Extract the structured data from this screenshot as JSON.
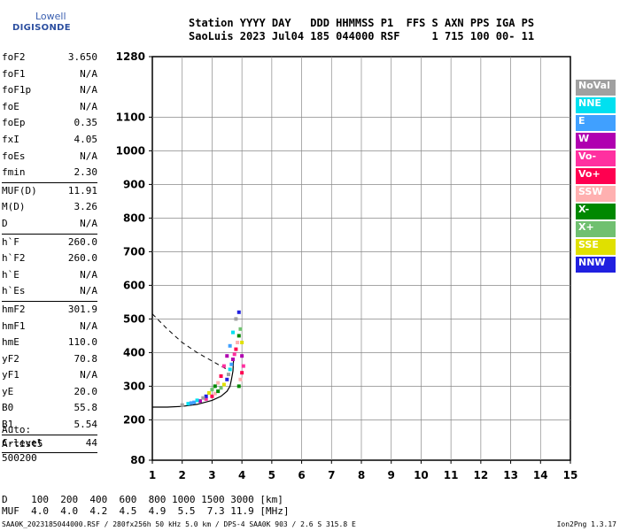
{
  "logo": {
    "line1": "Lowell",
    "line2": "DIGISONDE"
  },
  "header": {
    "line1": "Station YYYY DAY   DDD HHMMSS P1  FFS S AXN PPS IGA PS",
    "line2": "SaoLuis 2023 Jul04 185 044000 RSF     1 715 100 00- 11"
  },
  "params": [
    {
      "k": "foF2",
      "v": "3.650"
    },
    {
      "k": "foF1",
      "v": "N/A"
    },
    {
      "k": "foF1p",
      "v": "N/A"
    },
    {
      "k": "foE",
      "v": "N/A"
    },
    {
      "k": "foEp",
      "v": "0.35"
    },
    {
      "k": "fxI",
      "v": "4.05"
    },
    {
      "k": "foEs",
      "v": "N/A"
    },
    {
      "k": "fmin",
      "v": "2.30",
      "sep": true
    },
    {
      "k": "MUF(D)",
      "v": "11.91"
    },
    {
      "k": "M(D)",
      "v": "3.26"
    },
    {
      "k": "D",
      "v": "N/A",
      "sep": true
    },
    {
      "k": "h`F",
      "v": "260.0"
    },
    {
      "k": "h`F2",
      "v": "260.0"
    },
    {
      "k": "h`E",
      "v": "N/A"
    },
    {
      "k": "h`Es",
      "v": "N/A",
      "sep": true
    },
    {
      "k": "hmF2",
      "v": "301.9"
    },
    {
      "k": "hmF1",
      "v": "N/A"
    },
    {
      "k": "hmE",
      "v": "110.0"
    },
    {
      "k": "yF2",
      "v": "70.8"
    },
    {
      "k": "yF1",
      "v": "N/A"
    },
    {
      "k": "yE",
      "v": "20.0"
    },
    {
      "k": "B0",
      "v": "55.8"
    },
    {
      "k": "B1",
      "v": "5.54",
      "sep": true
    },
    {
      "k": "C-level",
      "v": "44",
      "sep": true
    }
  ],
  "auto": {
    "line1": "Auto:",
    "line2": "Artist5",
    "line3": "500200"
  },
  "dmuf": {
    "d_line": "D    100  200  400  600  800 1000 1500 3000 [km]",
    "muf_line": "MUF  4.0  4.0  4.2  4.5  4.9  5.5  7.3 11.9 [MHz]"
  },
  "footer": {
    "left": "SAA0K_2023185044000.RSF / 280fx256h 50 kHz 5.0 km / DPS-4 SAA0K 903 / 2.6 S 315.8 E",
    "right": "Ion2Png 1.3.17"
  },
  "legend": [
    {
      "label": "NoVal",
      "color": "#a0a0a0"
    },
    {
      "label": "NNE",
      "color": "#00e0f0"
    },
    {
      "label": "E",
      "color": "#40a0ff"
    },
    {
      "label": "W",
      "color": "#b000b0"
    },
    {
      "label": "Vo-",
      "color": "#ff30a0"
    },
    {
      "label": "Vo+",
      "color": "#ff0050"
    },
    {
      "label": "SSW",
      "color": "#ffb0b0"
    },
    {
      "label": "X-",
      "color": "#008800"
    },
    {
      "label": "X+",
      "color": "#70c070"
    },
    {
      "label": "SSE",
      "color": "#e0e000"
    },
    {
      "label": "NNW",
      "color": "#2020e0"
    }
  ],
  "chart_data": {
    "type": "scatter",
    "xlim": [
      1,
      15
    ],
    "ylim": [
      80,
      1280
    ],
    "x_ticks": [
      "1",
      "2",
      "3",
      "4",
      "5",
      "6",
      "7",
      "8",
      "9",
      "10",
      "11",
      "12",
      "13",
      "14",
      "15"
    ],
    "y_ticks": [
      "80",
      "200",
      "300",
      "400",
      "500",
      "600",
      "700",
      "800",
      "900",
      "1000",
      "1100",
      "1280"
    ],
    "grid": true,
    "trace_points": [
      [
        2.0,
        244
      ],
      [
        2.2,
        248
      ],
      [
        2.4,
        252
      ],
      [
        2.6,
        256
      ],
      [
        2.8,
        262
      ],
      [
        3.0,
        270
      ],
      [
        3.1,
        278
      ],
      [
        3.2,
        285
      ],
      [
        3.3,
        295
      ],
      [
        3.4,
        305
      ],
      [
        3.5,
        320
      ],
      [
        3.55,
        335
      ],
      [
        3.6,
        350
      ],
      [
        3.65,
        365
      ],
      [
        3.7,
        380
      ],
      [
        3.75,
        395
      ],
      [
        3.8,
        410
      ],
      [
        3.85,
        430
      ],
      [
        3.9,
        450
      ],
      [
        3.95,
        470
      ],
      [
        4.0,
        430
      ],
      [
        3.9,
        520
      ],
      [
        3.8,
        500
      ],
      [
        3.7,
        460
      ],
      [
        3.6,
        420
      ],
      [
        3.5,
        390
      ],
      [
        3.4,
        360
      ],
      [
        3.3,
        330
      ],
      [
        3.2,
        310
      ],
      [
        3.1,
        300
      ],
      [
        3.0,
        290
      ],
      [
        2.9,
        280
      ],
      [
        2.8,
        270
      ],
      [
        2.7,
        265
      ],
      [
        2.5,
        258
      ],
      [
        2.3,
        250
      ],
      [
        4.0,
        390
      ],
      [
        4.05,
        360
      ],
      [
        4.0,
        340
      ],
      [
        3.95,
        320
      ],
      [
        3.9,
        300
      ]
    ],
    "profile_curve": [
      [
        1.0,
        238
      ],
      [
        1.5,
        238
      ],
      [
        2.0,
        240
      ],
      [
        2.5,
        246
      ],
      [
        3.0,
        258
      ],
      [
        3.3,
        270
      ],
      [
        3.5,
        285
      ],
      [
        3.6,
        300
      ],
      [
        3.65,
        320
      ],
      [
        3.7,
        345
      ],
      [
        3.72,
        380
      ]
    ],
    "extraordinary_curve": [
      [
        1.0,
        515
      ],
      [
        1.5,
        470
      ],
      [
        2.0,
        430
      ],
      [
        2.5,
        400
      ],
      [
        3.0,
        375
      ],
      [
        3.3,
        360
      ],
      [
        3.5,
        350
      ]
    ]
  }
}
